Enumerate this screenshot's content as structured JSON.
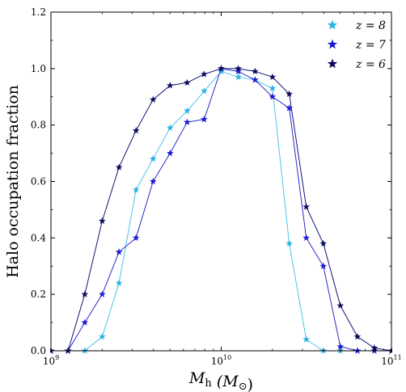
{
  "chart_data": {
    "type": "line",
    "xscale": "log",
    "xlim": [
      1000000000,
      100000000000
    ],
    "ylim": [
      0,
      1.2
    ],
    "xlabel": "M_h (M_⊙)",
    "ylabel": "Halo occupation fraction",
    "xticks": [
      {
        "value": 1000000000,
        "base": "10",
        "exp": "9"
      },
      {
        "value": 10000000000,
        "base": "10",
        "exp": "10"
      },
      {
        "value": 100000000000,
        "base": "10",
        "exp": "11"
      }
    ],
    "yticks": [
      "0.0",
      "0.2",
      "0.4",
      "0.6",
      "0.8",
      "1.0",
      "1.2"
    ],
    "legend_position": "top-right",
    "x": [
      1000000000,
      1260000000,
      1580000000,
      2000000000,
      2510000000,
      3160000000,
      3980000000,
      5010000000,
      6310000000,
      7940000000,
      10000000000,
      12600000000,
      15800000000,
      20000000000,
      25100000000,
      31600000000,
      39800000000,
      50100000000,
      63100000000,
      79400000000,
      100000000000
    ],
    "series": [
      {
        "name": "z = 8",
        "color": "#29b3e3",
        "line_color": "#4fc3ea",
        "values": [
          0.0,
          0.0,
          0.0,
          0.05,
          0.24,
          0.57,
          0.68,
          0.79,
          0.85,
          0.92,
          0.99,
          0.97,
          0.96,
          0.93,
          0.38,
          0.04,
          0.0,
          0.0,
          0.0,
          0.0,
          0.0
        ]
      },
      {
        "name": "z = 7",
        "color": "#1a1ad6",
        "line_color": "#2a2ac9",
        "values": [
          0.0,
          0.0,
          0.1,
          0.2,
          0.35,
          0.4,
          0.6,
          0.7,
          0.81,
          0.82,
          1.0,
          0.99,
          0.96,
          0.9,
          0.86,
          0.4,
          0.3,
          0.015,
          0.0,
          0.0,
          0.0
        ]
      },
      {
        "name": "z = 6",
        "color": "#0a0a5c",
        "line_color": "#14147a",
        "values": [
          0.0,
          0.0,
          0.2,
          0.46,
          0.65,
          0.78,
          0.89,
          0.94,
          0.95,
          0.98,
          1.0,
          1.0,
          0.99,
          0.97,
          0.91,
          0.51,
          0.38,
          0.16,
          0.05,
          0.01,
          0.0
        ]
      }
    ]
  }
}
